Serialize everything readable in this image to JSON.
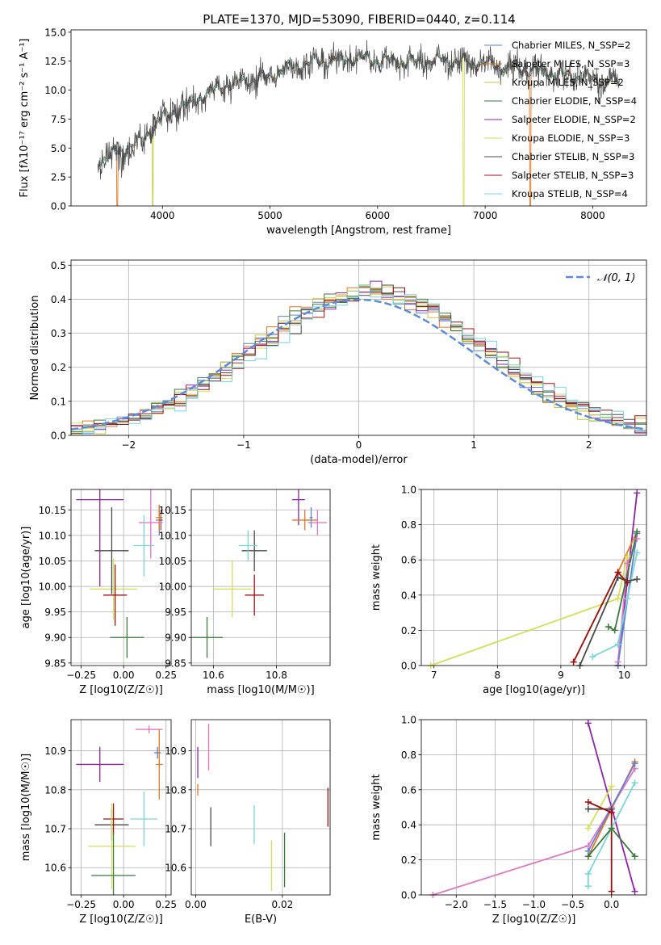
{
  "figure": {
    "title": "PLATE=1370, MJD=53090, FIBERID=0440, z=0.114"
  },
  "palette": {
    "series_colors": [
      "#5b82d6",
      "#e37722",
      "#c9c940",
      "#3b7a3b",
      "#8e24aa",
      "#d4e157",
      "#4a4a4a",
      "#a01010",
      "#7ad6d6"
    ],
    "extra_colors": [
      "#e377c2",
      "#8c564b"
    ],
    "normal_curve": "#5b8bd9",
    "grid": "#b0b0b0"
  },
  "chart_data": [
    {
      "id": "spectrum",
      "type": "line",
      "title": "PLATE=1370, MJD=53090, FIBERID=0440, z=0.114",
      "xlabel": "wavelength [Angstrom, rest frame]",
      "ylabel": "Flux [fλ10⁻¹⁷ erg cm⁻² s⁻¹ A⁻¹]",
      "xlim": [
        3150,
        8500
      ],
      "ylim": [
        0,
        15.2
      ],
      "xticks": [
        4000,
        5000,
        6000,
        7000,
        8000
      ],
      "yticks": [
        0.0,
        2.5,
        5.0,
        7.5,
        10.0,
        12.5,
        15.0
      ],
      "grid": false,
      "legend_position": "top-right",
      "series": [
        {
          "name": "Chabrier MILES, N_SSP=2"
        },
        {
          "name": "Salpeter MILES, N_SSP=3"
        },
        {
          "name": "Kroupa MILES, N_SSP=2"
        },
        {
          "name": "Chabrier ELODIE, N_SSP=4"
        },
        {
          "name": "Salpeter ELODIE, N_SSP=2"
        },
        {
          "name": "Kroupa ELODIE, N_SSP=3"
        },
        {
          "name": "Chabrier STELIB, N_SSP=3"
        },
        {
          "name": "Salpeter STELIB, N_SSP=3"
        },
        {
          "name": "Kroupa STELIB, N_SSP=4"
        }
      ],
      "data_continuum": {
        "x": [
          3400,
          3600,
          3800,
          4000,
          4200,
          4400,
          4600,
          4800,
          5000,
          5200,
          5400,
          5600,
          5800,
          6000,
          6200,
          6400,
          6600,
          6800,
          7000,
          7200,
          7400,
          7600,
          7800,
          8000,
          8250
        ],
        "y": [
          3.9,
          4.7,
          5.6,
          7.6,
          8.6,
          9.6,
          10.5,
          10.8,
          11.2,
          12.0,
          12.4,
          12.6,
          12.8,
          12.6,
          12.5,
          12.4,
          12.6,
          12.4,
          12.3,
          11.9,
          11.8,
          11.5,
          11.2,
          11.0,
          10.7
        ]
      },
      "dropouts": [
        {
          "x": 3580,
          "series": 1
        },
        {
          "x": 3910,
          "series": 2
        },
        {
          "x": 6800,
          "series": 5
        },
        {
          "x": 7420,
          "series": 1
        }
      ]
    },
    {
      "id": "residuals",
      "type": "histogram",
      "xlabel": "(data-model)/error",
      "ylabel": "Normed distribution",
      "xlim": [
        -2.5,
        2.5
      ],
      "ylim": [
        0,
        0.515
      ],
      "xticks": [
        -2,
        -1,
        0,
        1,
        2
      ],
      "yticks": [
        0.0,
        0.1,
        0.2,
        0.3,
        0.4,
        0.5
      ],
      "grid": true,
      "bin_width": 0.1,
      "legend_position": "top-right",
      "curve_label": "𝒩(0, 1)"
    },
    {
      "id": "age-vs-Z",
      "type": "errorbar",
      "xlabel": "Z [log10(Z/Z☉)]",
      "ylabel": "age  [log10(age/yr)]",
      "xlim": [
        -0.31,
        0.28
      ],
      "ylim": [
        9.845,
        10.19
      ],
      "xticks": [
        -0.25,
        0.0,
        0.25
      ],
      "yticks": [
        9.85,
        9.9,
        9.95,
        10.0,
        10.05,
        10.1,
        10.15
      ],
      "grid": true,
      "points": [
        {
          "x": 0.21,
          "y": 10.13,
          "xerr": 0.02,
          "yerr": 0.03,
          "color": "#5b82d6"
        },
        {
          "x": 0.21,
          "y": 10.135,
          "xerr": 0.02,
          "yerr": 0.025,
          "color": "#e37722"
        },
        {
          "x": 0.22,
          "y": 10.13,
          "xerr": 0.01,
          "yerr": 0.02,
          "color": "#8c564b"
        },
        {
          "x": -0.14,
          "y": 10.17,
          "xerr": 0.14,
          "yerr": 0.17,
          "color": "#8e24aa"
        },
        {
          "x": 0.16,
          "y": 10.125,
          "xerr": 0.07,
          "yerr": 0.07,
          "color": "#e377c2"
        },
        {
          "x": -0.06,
          "y": 9.995,
          "xerr": 0.14,
          "yerr": 0.06,
          "color": "#d4e157"
        },
        {
          "x": -0.07,
          "y": 10.07,
          "xerr": 0.1,
          "yerr": 0.085,
          "color": "#4a4a4a"
        },
        {
          "x": -0.05,
          "y": 9.983,
          "xerr": 0.07,
          "yerr": 0.06,
          "color": "#a01010"
        },
        {
          "x": 0.02,
          "y": 9.9,
          "xerr": 0.1,
          "yerr": 0.04,
          "color": "#3b7a3b"
        },
        {
          "x": 0.12,
          "y": 10.08,
          "xerr": 0.06,
          "yerr": 0.06,
          "color": "#7ad6d6"
        }
      ]
    },
    {
      "id": "age-vs-mass",
      "type": "errorbar",
      "xlabel": "mass [log10(M/M☉)]",
      "ylabel": "",
      "xlim": [
        10.53,
        10.97
      ],
      "ylim": [
        9.845,
        10.19
      ],
      "xticks": [
        10.6,
        10.8
      ],
      "yticks": [
        9.85,
        9.9,
        9.95,
        10.0,
        10.05,
        10.1,
        10.15
      ],
      "grid": true,
      "points": [
        {
          "x": 10.87,
          "y": 10.17,
          "xerr": 0.02,
          "yerr": 0.05,
          "color": "#8e24aa"
        },
        {
          "x": 10.89,
          "y": 10.13,
          "xerr": 0.04,
          "yerr": 0.02,
          "color": "#e37722"
        },
        {
          "x": 10.91,
          "y": 10.135,
          "xerr": 0.005,
          "yerr": 0.02,
          "color": "#5b82d6"
        },
        {
          "x": 10.93,
          "y": 10.125,
          "xerr": 0.03,
          "yerr": 0.025,
          "color": "#e377c2"
        },
        {
          "x": 10.73,
          "y": 10.07,
          "xerr": 0.04,
          "yerr": 0.04,
          "color": "#4a4a4a"
        },
        {
          "x": 10.71,
          "y": 10.08,
          "xerr": 0.03,
          "yerr": 0.03,
          "color": "#7ad6d6"
        },
        {
          "x": 10.73,
          "y": 9.983,
          "xerr": 0.03,
          "yerr": 0.04,
          "color": "#a01010"
        },
        {
          "x": 10.66,
          "y": 9.995,
          "xerr": 0.06,
          "yerr": 0.055,
          "color": "#d4e157"
        },
        {
          "x": 10.58,
          "y": 9.9,
          "xerr": 0.05,
          "yerr": 0.04,
          "color": "#3b7a3b"
        }
      ]
    },
    {
      "id": "mass-weight-vs-age",
      "type": "line",
      "xlabel": "age  [log10(age/yr)]",
      "ylabel": "mass weight",
      "xlim": [
        6.8,
        10.35
      ],
      "ylim": [
        0,
        1.0
      ],
      "xticks": [
        7,
        8,
        9,
        10
      ],
      "yticks": [
        0.0,
        0.2,
        0.4,
        0.6,
        0.8,
        1.0
      ],
      "grid": true,
      "series": [
        {
          "color": "#d4e157",
          "points": [
            [
              6.95,
              0.0
            ],
            [
              9.9,
              0.38
            ],
            [
              10.05,
              0.62
            ]
          ]
        },
        {
          "color": "#8e24aa",
          "points": [
            [
              9.9,
              0.0
            ],
            [
              10.2,
              0.98
            ]
          ]
        },
        {
          "color": "#e377c2",
          "points": [
            [
              9.9,
              0.02
            ],
            [
              10.05,
              0.58
            ],
            [
              10.2,
              0.72
            ]
          ]
        },
        {
          "color": "#e37722",
          "points": [
            [
              9.2,
              0.02
            ],
            [
              9.9,
              0.53
            ],
            [
              10.2,
              0.76
            ]
          ]
        },
        {
          "color": "#5b82d6",
          "points": [
            [
              9.9,
              0.0
            ],
            [
              10.2,
              0.75
            ]
          ]
        },
        {
          "color": "#7ad6d6",
          "points": [
            [
              9.5,
              0.05
            ],
            [
              9.9,
              0.12
            ],
            [
              10.05,
              0.38
            ],
            [
              10.2,
              0.64
            ]
          ]
        },
        {
          "color": "#3b7a3b",
          "points": [
            [
              9.75,
              0.22
            ],
            [
              9.85,
              0.2
            ],
            [
              10.2,
              0.76
            ]
          ]
        },
        {
          "color": "#4a4a4a",
          "points": [
            [
              9.3,
              0.0
            ],
            [
              9.9,
              0.5
            ],
            [
              10.05,
              0.48
            ],
            [
              10.2,
              0.49
            ]
          ]
        },
        {
          "color": "#a01010",
          "points": [
            [
              9.2,
              0.02
            ],
            [
              9.9,
              0.53
            ],
            [
              10.05,
              0.47
            ]
          ]
        }
      ]
    },
    {
      "id": "mass-vs-Z",
      "type": "errorbar",
      "xlabel": "Z [log10(Z/Z☉)]",
      "ylabel": "mass [log10(M/M☉)]",
      "xlim": [
        -0.31,
        0.28
      ],
      "ylim": [
        10.53,
        10.98
      ],
      "xticks": [
        -0.25,
        0.0,
        0.25
      ],
      "yticks": [
        10.6,
        10.7,
        10.8,
        10.9
      ],
      "grid": true,
      "points": [
        {
          "x": 0.15,
          "y": 10.955,
          "xerr": 0.08,
          "yerr": 0.01,
          "color": "#e377c2"
        },
        {
          "x": 0.2,
          "y": 10.895,
          "xerr": 0.02,
          "yerr": 0.015,
          "color": "#5b82d6"
        },
        {
          "x": 0.21,
          "y": 10.865,
          "xerr": 0.02,
          "yerr": 0.09,
          "color": "#e37722"
        },
        {
          "x": -0.14,
          "y": 10.865,
          "xerr": 0.14,
          "yerr": 0.045,
          "color": "#8e24aa"
        },
        {
          "x": -0.07,
          "y": 10.71,
          "xerr": 0.1,
          "yerr": 0.04,
          "color": "#4a4a4a"
        },
        {
          "x": -0.06,
          "y": 10.725,
          "xerr": 0.06,
          "yerr": 0.04,
          "color": "#a01010"
        },
        {
          "x": 0.12,
          "y": 10.725,
          "xerr": 0.08,
          "yerr": 0.07,
          "color": "#7ad6d6"
        },
        {
          "x": -0.07,
          "y": 10.655,
          "xerr": 0.14,
          "yerr": 0.11,
          "color": "#d4e157"
        },
        {
          "x": -0.06,
          "y": 10.58,
          "xerr": 0.13,
          "yerr": 0.11,
          "color": "#3b7a3b"
        }
      ]
    },
    {
      "id": "mass-vs-ebv",
      "type": "errorbar",
      "xlabel": "E(B-V)",
      "ylabel": "",
      "xlim": [
        -0.001,
        0.031
      ],
      "ylim": [
        10.53,
        10.98
      ],
      "xticks": [
        0.0,
        0.02
      ],
      "yticks": [
        10.6,
        10.7,
        10.8,
        10.9
      ],
      "grid": true,
      "points": [
        {
          "x": 0.0005,
          "y": 10.87,
          "xerr": 0,
          "yerr": 0.04,
          "color": "#8e24aa"
        },
        {
          "x": 0.0005,
          "y": 10.8,
          "xerr": 0,
          "yerr": 0.015,
          "color": "#e37722"
        },
        {
          "x": 0.003,
          "y": 10.91,
          "xerr": 0,
          "yerr": 0.06,
          "color": "#e377c2"
        },
        {
          "x": 0.0035,
          "y": 10.705,
          "xerr": 0,
          "yerr": 0.05,
          "color": "#4a4a4a"
        },
        {
          "x": 0.0135,
          "y": 10.71,
          "xerr": 0,
          "yerr": 0.05,
          "color": "#7ad6d6"
        },
        {
          "x": 0.0175,
          "y": 10.605,
          "xerr": 0,
          "yerr": 0.065,
          "color": "#d4e157"
        },
        {
          "x": 0.0205,
          "y": 10.62,
          "xerr": 0,
          "yerr": 0.07,
          "color": "#3b7a3b"
        },
        {
          "x": 0.0305,
          "y": 10.755,
          "xerr": 0,
          "yerr": 0.05,
          "color": "#a01010"
        }
      ]
    },
    {
      "id": "mass-weight-vs-Z",
      "type": "line",
      "xlabel": "Z [log10(Z/Z☉)]",
      "ylabel": "mass weight",
      "xlim": [
        -2.45,
        0.45
      ],
      "ylim": [
        0,
        1.0
      ],
      "xticks": [
        -2.0,
        -1.5,
        -1.0,
        -0.5,
        0.0
      ],
      "yticks": [
        0.0,
        0.2,
        0.4,
        0.6,
        0.8,
        1.0
      ],
      "grid": true,
      "series": [
        {
          "color": "#e377c2",
          "points": [
            [
              -2.3,
              0.0
            ],
            [
              -0.3,
              0.28
            ],
            [
              0.0,
              0.5
            ],
            [
              0.3,
              0.72
            ]
          ]
        },
        {
          "color": "#8e24aa",
          "points": [
            [
              -0.3,
              0.98
            ],
            [
              0.3,
              0.02
            ]
          ]
        },
        {
          "color": "#e37722",
          "points": [
            [
              -0.3,
              0.22
            ],
            [
              0.3,
              0.76
            ]
          ]
        },
        {
          "color": "#5b82d6",
          "points": [
            [
              -0.3,
              0.25
            ],
            [
              0.3,
              0.75
            ]
          ]
        },
        {
          "color": "#d4e157",
          "points": [
            [
              -0.3,
              0.38
            ],
            [
              0.0,
              0.62
            ]
          ]
        },
        {
          "color": "#7ad6d6",
          "points": [
            [
              -0.3,
              0.05
            ],
            [
              -0.3,
              0.12
            ],
            [
              0.0,
              0.38
            ],
            [
              0.3,
              0.64
            ]
          ]
        },
        {
          "color": "#3b7a3b",
          "points": [
            [
              -0.3,
              0.22
            ],
            [
              0.0,
              0.38
            ],
            [
              0.3,
              0.22
            ]
          ]
        },
        {
          "color": "#4a4a4a",
          "points": [
            [
              -0.3,
              0.49
            ],
            [
              0.0,
              0.49
            ]
          ]
        },
        {
          "color": "#a01010",
          "points": [
            [
              -0.3,
              0.53
            ],
            [
              0.0,
              0.47
            ],
            [
              0.0,
              0.02
            ]
          ]
        }
      ]
    }
  ]
}
